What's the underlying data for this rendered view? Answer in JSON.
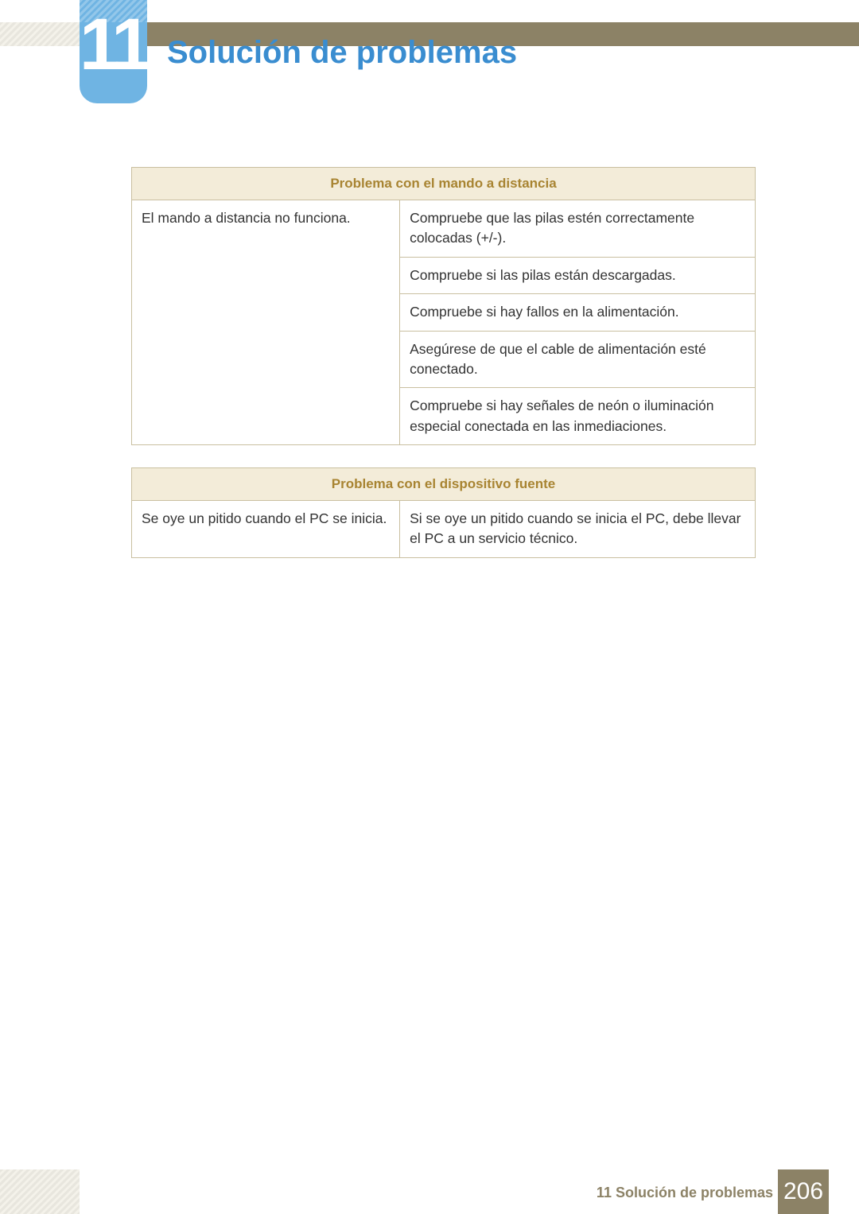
{
  "colors": {
    "accent_blue": "#3a8dd0",
    "badge_blue": "#6fb4e3",
    "band_olive": "#8c8266",
    "table_border": "#c9bfa0",
    "table_header_bg": "#f3ecd9",
    "table_header_text": "#a88432",
    "body_text": "#333333",
    "page_bg": "#ffffff"
  },
  "header": {
    "chapter_number": "11",
    "title": "Solución de problemas"
  },
  "tables": [
    {
      "header": "Problema con el mando a distancia",
      "left": "El mando a distancia no funciona.",
      "rights": [
        "Compruebe que las pilas estén correctamente colocadas (+/-).",
        "Compruebe si las pilas están descargadas.",
        "Compruebe si hay fallos en la alimentación.",
        "Asegúrese de que el cable de alimentación esté conectado.",
        "Compruebe si hay señales de neón o iluminación especial conectada en las inmediaciones."
      ]
    },
    {
      "header": "Problema con el dispositivo fuente",
      "left": "Se oye un pitido cuando el PC se inicia.",
      "rights": [
        "Si se oye un pitido cuando se inicia el PC, debe llevar el PC a un servicio técnico."
      ]
    }
  ],
  "footer": {
    "label": "11 Solución de problemas",
    "page_number": "206"
  }
}
